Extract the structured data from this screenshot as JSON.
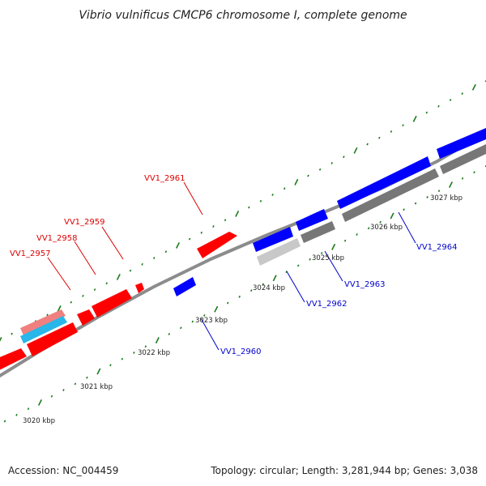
{
  "title": "Vibrio vulnificus CMCP6 chromosome I, complete genome",
  "footer": {
    "accession": "Accession: NC_004459",
    "topology": "Topology: circular; Length: 3,281,944 bp; Genes: 3,038"
  },
  "colors": {
    "forward_gene": "#ff0000",
    "reverse_gene": "#0000ff",
    "forward_label": "#dd0000",
    "reverse_label": "#0000cc",
    "backbone": "#8c8c8c",
    "tick": "#1a7a1a",
    "pseudo_pink": "#f08080",
    "pseudo_cyan": "#29b6e8",
    "grey_dark": "#777777",
    "grey_light": "#c8c8c8"
  },
  "scale_labels": [
    "3020 kbp",
    "3021 kbp",
    "3022 kbp",
    "3023 kbp",
    "3024 kbp",
    "3025 kbp",
    "3026 kbp",
    "3027 kbp"
  ],
  "gene_labels": {
    "forward": [
      "VV1_2957",
      "VV1_2958",
      "VV1_2959",
      "VV1_2961"
    ],
    "reverse": [
      "VV1_2960",
      "VV1_2962",
      "VV1_2963",
      "VV1_2964"
    ]
  }
}
